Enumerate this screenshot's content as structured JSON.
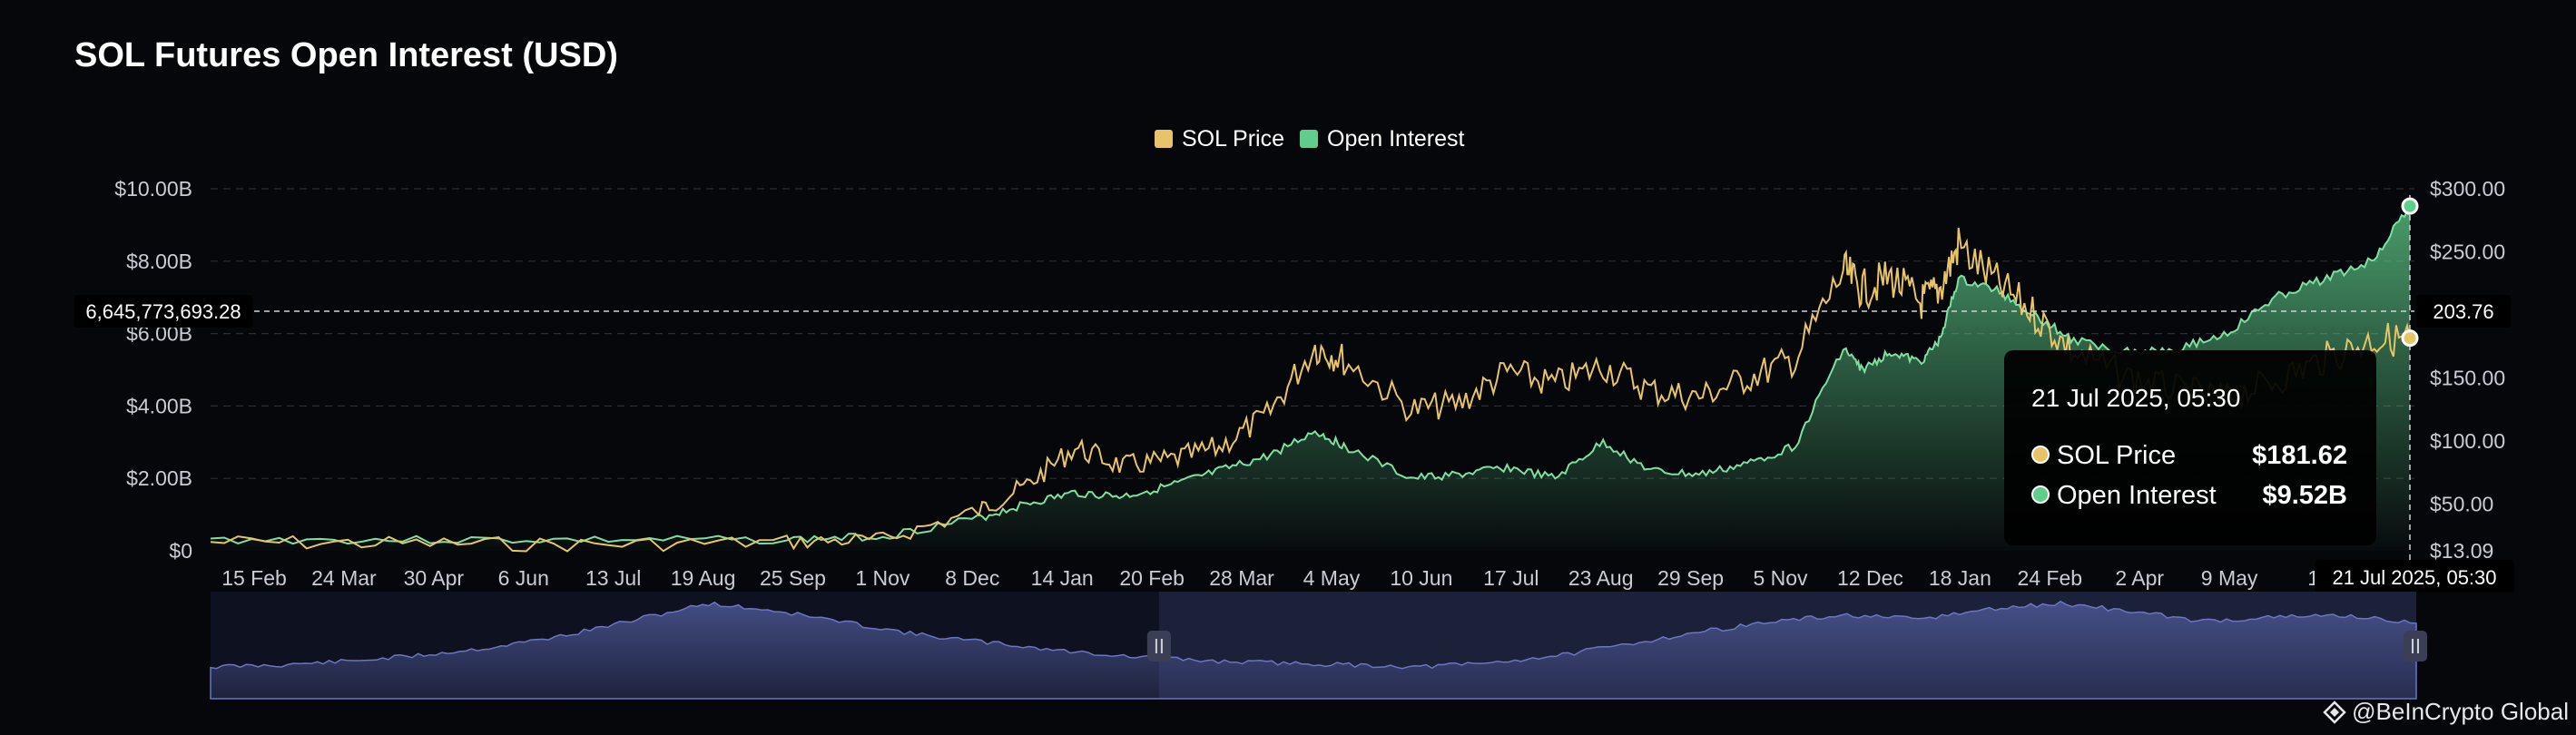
{
  "title": "SOL Futures Open Interest (USD)",
  "brand": "@BeInCrypto Global",
  "colors": {
    "background": "#06070b",
    "price": "#e8c468",
    "oi": "#5fce8a",
    "navigator": "#4a5590"
  },
  "chart_data": {
    "type": "area",
    "title": "SOL Futures Open Interest (USD)",
    "legend": {
      "position": "top-center",
      "entries": [
        "SOL Price",
        "Open Interest"
      ]
    },
    "grid": true,
    "x_ticks": [
      "15 Feb",
      "24 Mar",
      "30 Apr",
      "6 Jun",
      "13 Jul",
      "19 Aug",
      "25 Sep",
      "1 Nov",
      "8 Dec",
      "14 Jan",
      "20 Feb",
      "28 Mar",
      "4 May",
      "10 Jun",
      "17 Jul",
      "23 Aug",
      "29 Sep",
      "5 Nov",
      "12 Dec",
      "18 Jan",
      "24 Feb",
      "2 Apr",
      "9 May",
      "15"
    ],
    "left_axis": {
      "ticks": [
        "$0",
        "$2.00B",
        "$4.00B",
        "$6.00B",
        "$8.00B",
        "$10.00B"
      ],
      "min": 0,
      "max": 10000000000
    },
    "right_axis": {
      "ticks": [
        "$13.09",
        "$50.00",
        "$100.00",
        "$150.00",
        "$200.00",
        "$250.00",
        "$300.00"
      ],
      "min": 13.09,
      "max": 300
    },
    "crosshair": {
      "left_value": "6,645,773,693.28",
      "right_value": "203.76",
      "x_label": "21 Jul 2025, 05:30"
    },
    "series": [
      {
        "name": "SOL Price",
        "axis": "right",
        "x": [
          0,
          2,
          4,
          6,
          7,
          8,
          8.5,
          9,
          9.5,
          10,
          10.5,
          11,
          11.5,
          11.8,
          12.5,
          13,
          13.5,
          14,
          14.5,
          15,
          15.5,
          16,
          16.5,
          17,
          17.2,
          17.5,
          17.8,
          18,
          18.2,
          18.6,
          19,
          19.4,
          20,
          20.5,
          21,
          21.5,
          22,
          22.5,
          22.9
        ],
        "values": [
          20,
          19,
          18,
          20,
          22,
          45,
          65,
          95,
          80,
          85,
          95,
          120,
          175,
          165,
          125,
          130,
          155,
          145,
          160,
          140,
          135,
          150,
          165,
          235,
          220,
          230,
          210,
          220,
          255,
          225,
          200,
          170,
          150,
          140,
          135,
          148,
          165,
          180,
          181.62
        ]
      },
      {
        "name": "Open Interest",
        "axis": "left",
        "x": [
          0,
          2,
          4,
          6,
          7,
          8,
          8.5,
          9,
          9.5,
          10,
          10.5,
          11,
          11.5,
          11.8,
          12.5,
          13,
          13.5,
          14,
          14.5,
          15,
          15.5,
          16,
          16.5,
          17,
          17.2,
          17.5,
          17.8,
          18,
          18.2,
          18.6,
          19,
          19.4,
          20,
          20.5,
          21,
          21.5,
          22,
          22.5,
          22.9
        ],
        "values": [
          0.3,
          0.3,
          0.3,
          0.3,
          0.4,
          0.9,
          1.3,
          1.6,
          1.5,
          1.8,
          2.2,
          2.6,
          3.3,
          2.9,
          2.0,
          2.1,
          2.3,
          2.0,
          3.0,
          2.2,
          2.1,
          2.4,
          2.9,
          5.6,
          5.0,
          5.5,
          5.2,
          5.8,
          7.5,
          7.2,
          6.5,
          5.8,
          5.5,
          5.6,
          6.0,
          7.0,
          7.5,
          8.0,
          9.52
        ]
      }
    ],
    "tooltip": {
      "title": "21 Jul 2025, 05:30",
      "rows": [
        {
          "label": "SOL Price",
          "value": "$181.62"
        },
        {
          "label": "Open Interest",
          "value": "$9.52B"
        }
      ]
    },
    "navigator": {
      "values": [
        0.6,
        0.7,
        0.9,
        1.2,
        1.6,
        2.2,
        3.0,
        3.8,
        3.4,
        2.8,
        2.2,
        1.8,
        1.4,
        1.1,
        0.9,
        0.8,
        0.7,
        0.6,
        0.8,
        1.2,
        1.8,
        2.4,
        2.9,
        3.2,
        3.0,
        3.5,
        3.8,
        3.4,
        2.9,
        3.1,
        3.2,
        2.8
      ],
      "selection_start": 0.43,
      "selection_end": 1.0
    }
  }
}
